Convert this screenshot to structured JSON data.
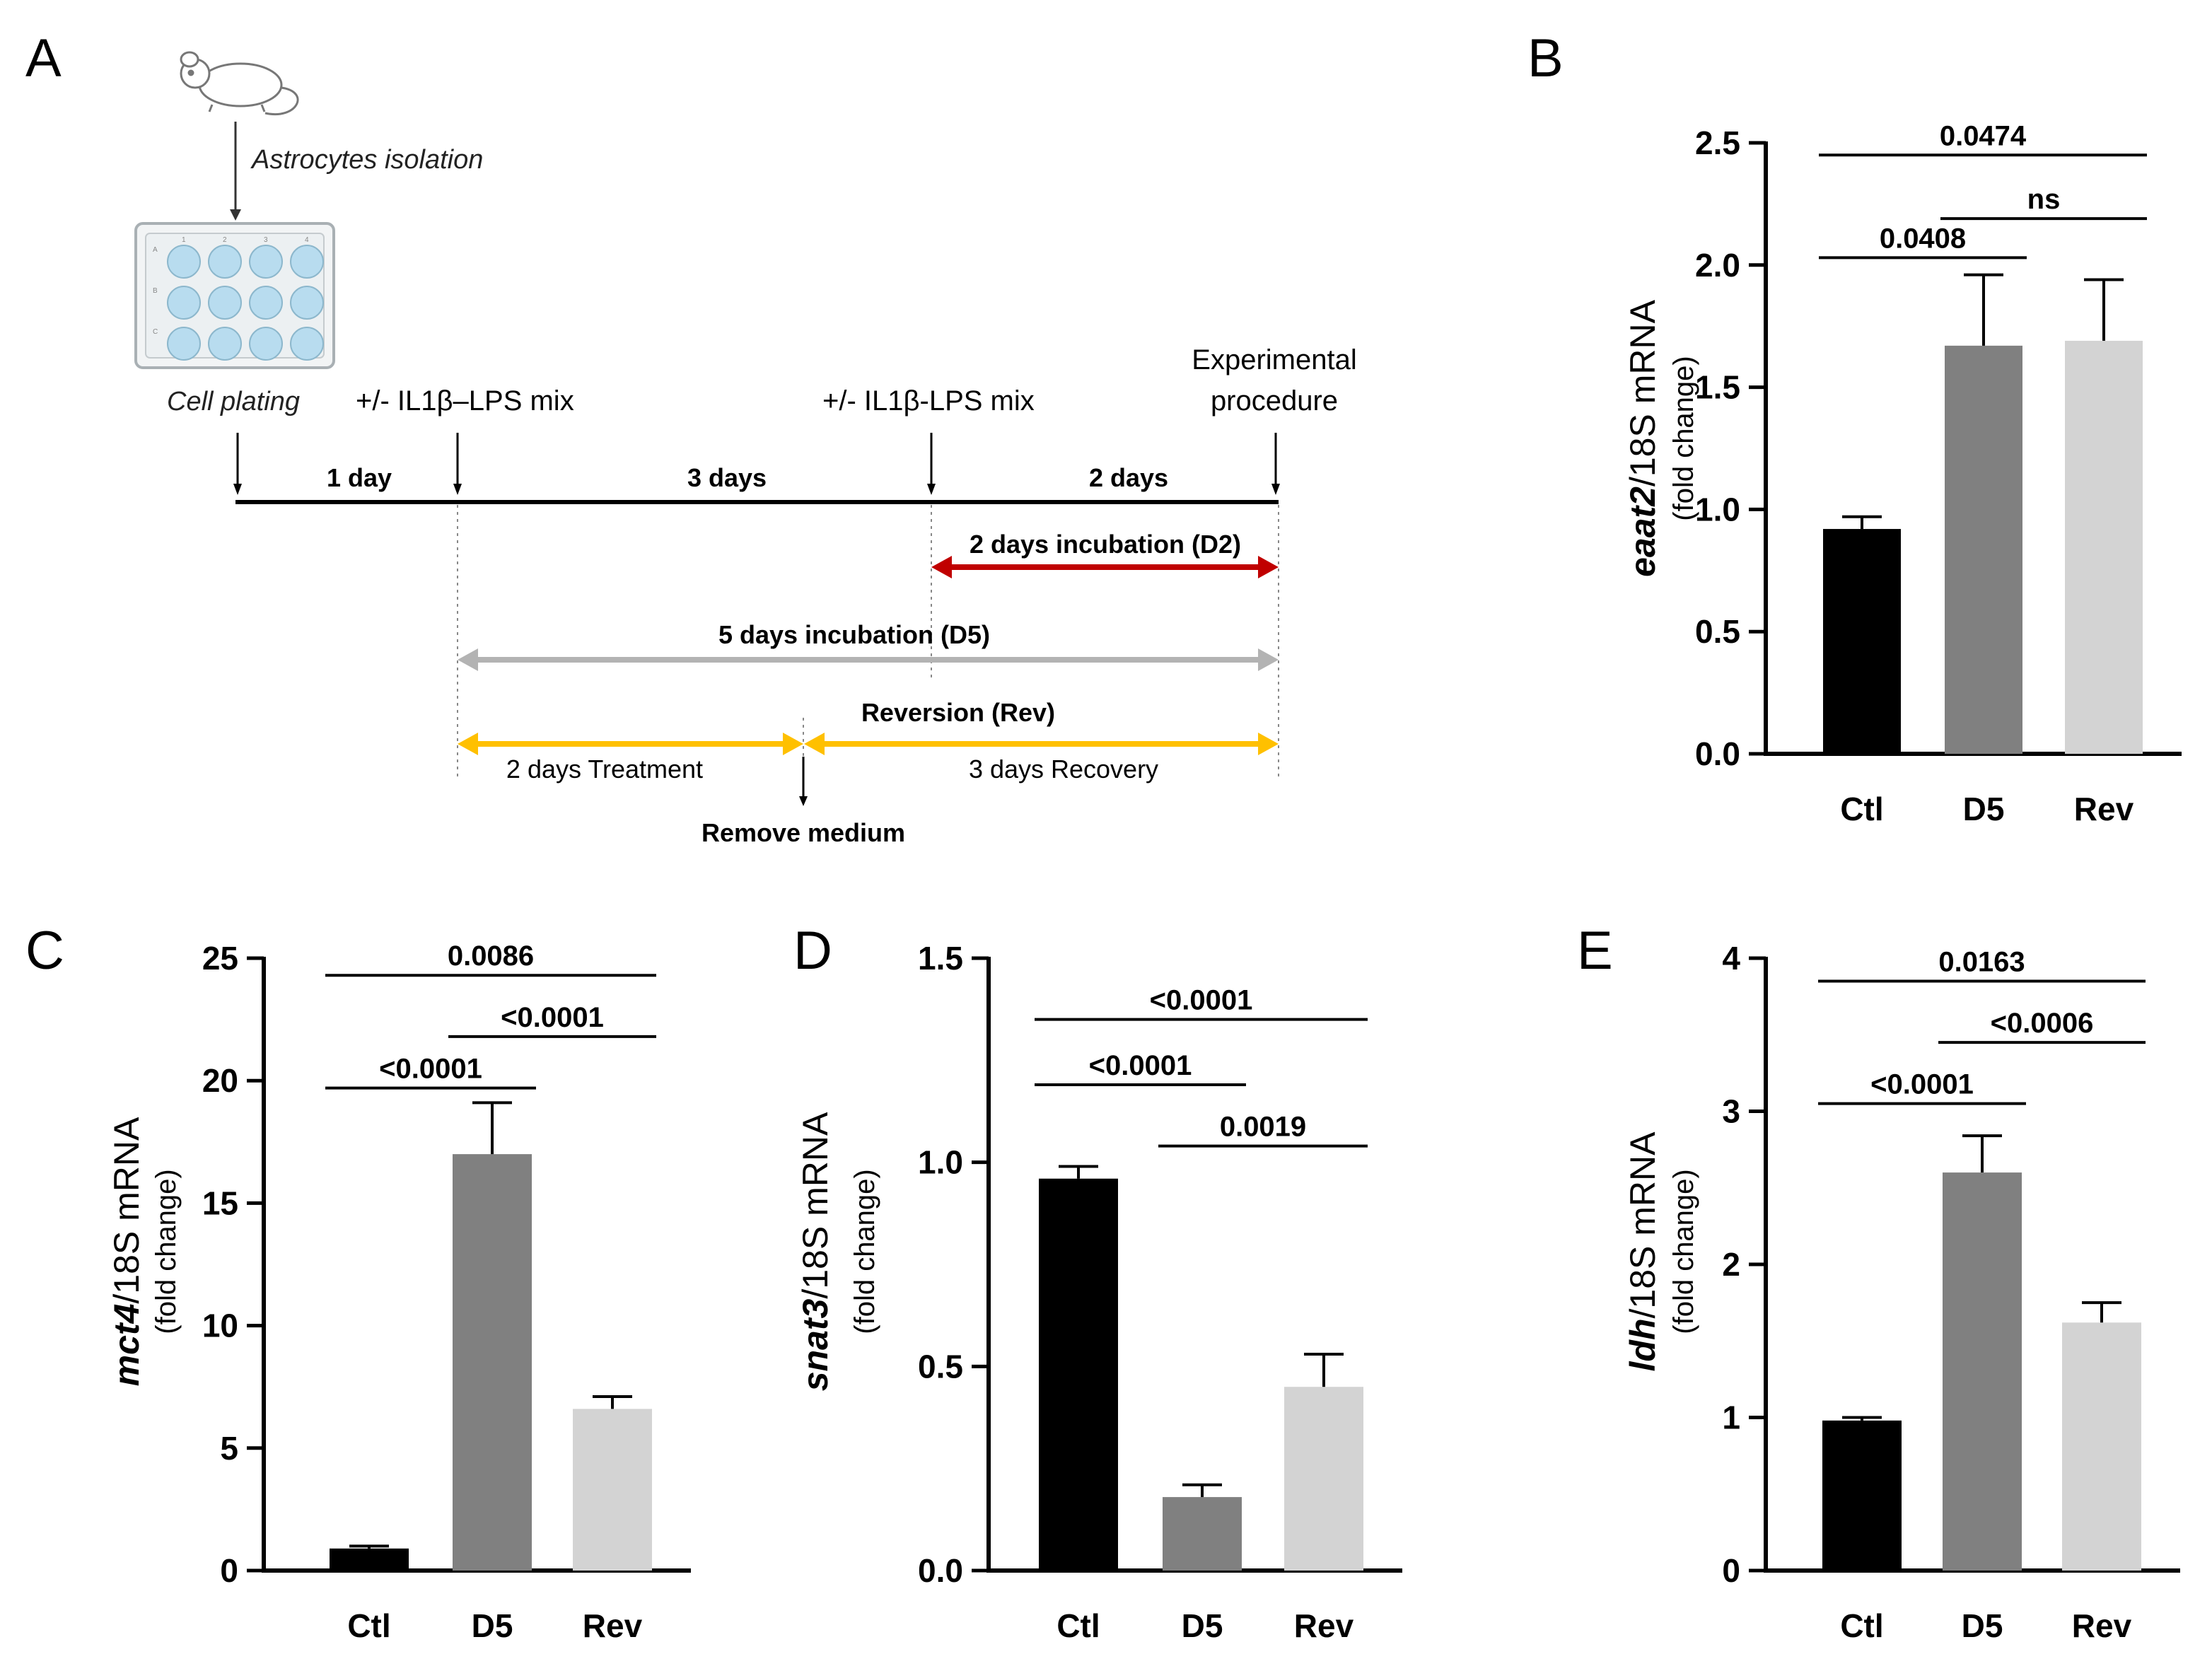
{
  "panels": {
    "a": "A",
    "b": "B",
    "c": "C",
    "d": "D",
    "e": "E"
  },
  "timeline": {
    "isolation_label": "Astrocytes isolation",
    "plating_label": "Cell plating",
    "treat1_label": "+/- IL1β–LPS mix",
    "treat2_label": "+/- IL1β-LPS mix",
    "experimental_line1": "Experimental",
    "experimental_line2": "procedure",
    "interval1": "1 day",
    "interval2": "3 days",
    "interval3": "2 days",
    "d2_label": "2 days incubation (D2)",
    "d5_label": "5 days incubation (D5)",
    "rev_label": "Reversion (Rev)",
    "treatment_label": "2 days Treatment",
    "recovery_label": "3 days Recovery",
    "remove_label": "Remove medium",
    "plate_rows": [
      "A",
      "B",
      "C"
    ],
    "plate_cols": [
      "1",
      "2",
      "3",
      "4"
    ],
    "colors": {
      "d2": "#c00000",
      "d5": "#b3b3b3",
      "rev": "#ffc000",
      "well": "#b8dcef"
    }
  },
  "chart_data": [
    {
      "id": "B",
      "type": "bar",
      "gene": "eaat2",
      "ylabel_suffix": "/18S mRNA",
      "ylabel_sub": "(fold change)",
      "categories": [
        "Ctl",
        "D5",
        "Rev"
      ],
      "values": [
        0.92,
        1.67,
        1.69
      ],
      "errors": [
        0.05,
        0.29,
        0.25
      ],
      "colors": [
        "#000000",
        "#808080",
        "#d3d3d3"
      ],
      "ylim": [
        0,
        2.5
      ],
      "yticks": [
        0,
        0.5,
        1.0,
        1.5,
        2.0,
        2.5
      ],
      "yticklabels": [
        "0.0",
        "0.5",
        "1.0",
        "1.5",
        "2.0",
        "2.5"
      ],
      "comparisons": [
        {
          "from": 0,
          "to": 1,
          "y": 2.03,
          "label": "0.0408"
        },
        {
          "from": 1,
          "to": 2,
          "y": 2.19,
          "label": "ns"
        },
        {
          "from": 0,
          "to": 2,
          "y": 2.45,
          "label": "0.0474"
        }
      ]
    },
    {
      "id": "C",
      "type": "bar",
      "gene": "mct4",
      "ylabel_suffix": "/18S mRNA",
      "ylabel_sub": "(fold change)",
      "categories": [
        "Ctl",
        "D5",
        "Rev"
      ],
      "values": [
        0.9,
        17.0,
        6.6
      ],
      "errors": [
        0.1,
        2.1,
        0.5
      ],
      "colors": [
        "#000000",
        "#808080",
        "#d3d3d3"
      ],
      "ylim": [
        0,
        25
      ],
      "yticks": [
        0,
        5,
        10,
        15,
        20,
        25
      ],
      "yticklabels": [
        "0",
        "5",
        "10",
        "15",
        "20",
        "25"
      ],
      "comparisons": [
        {
          "from": 0,
          "to": 1,
          "y": 19.7,
          "label": "<0.0001"
        },
        {
          "from": 1,
          "to": 2,
          "y": 21.8,
          "label": "<0.0001"
        },
        {
          "from": 0,
          "to": 2,
          "y": 24.3,
          "label": "0.0086"
        }
      ]
    },
    {
      "id": "D",
      "type": "bar",
      "gene": "snat3",
      "ylabel_suffix": "/18S mRNA",
      "ylabel_sub": "(fold change)",
      "categories": [
        "Ctl",
        "D5",
        "Rev"
      ],
      "values": [
        0.96,
        0.18,
        0.45
      ],
      "errors": [
        0.03,
        0.03,
        0.08
      ],
      "colors": [
        "#000000",
        "#808080",
        "#d3d3d3"
      ],
      "ylim": [
        0,
        1.5
      ],
      "yticks": [
        0,
        0.5,
        1.0,
        1.5
      ],
      "yticklabels": [
        "0.0",
        "0.5",
        "1.0",
        "1.5"
      ],
      "comparisons": [
        {
          "from": 1,
          "to": 2,
          "y": 1.04,
          "label": "0.0019"
        },
        {
          "from": 0,
          "to": 1,
          "y": 1.19,
          "label": "<0.0001"
        },
        {
          "from": 0,
          "to": 2,
          "y": 1.35,
          "label": "<0.0001"
        }
      ]
    },
    {
      "id": "E",
      "type": "bar",
      "gene": "ldh",
      "ylabel_suffix": "/18S mRNA",
      "ylabel_sub": "(fold change)",
      "categories": [
        "Ctl",
        "D5",
        "Rev"
      ],
      "values": [
        0.98,
        2.6,
        1.62
      ],
      "errors": [
        0.02,
        0.24,
        0.13
      ],
      "colors": [
        "#000000",
        "#808080",
        "#d3d3d3"
      ],
      "ylim": [
        0,
        4
      ],
      "yticks": [
        0,
        1,
        2,
        3,
        4
      ],
      "yticklabels": [
        "0",
        "1",
        "2",
        "3",
        "4"
      ],
      "comparisons": [
        {
          "from": 0,
          "to": 1,
          "y": 3.05,
          "label": "<0.0001"
        },
        {
          "from": 1,
          "to": 2,
          "y": 3.45,
          "label": "<0.0006"
        },
        {
          "from": 0,
          "to": 2,
          "y": 3.85,
          "label": "0.0163"
        }
      ]
    }
  ]
}
